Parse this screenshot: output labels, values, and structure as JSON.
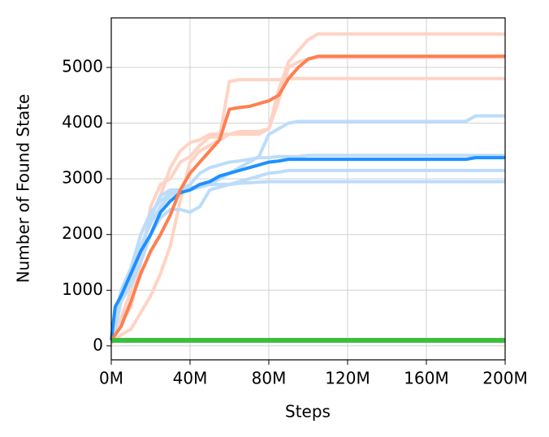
{
  "chart_data": {
    "type": "line",
    "xlabel": "Steps",
    "ylabel": "Number of Found State",
    "x": [
      0,
      2,
      5,
      10,
      15,
      20,
      25,
      30,
      35,
      40,
      45,
      50,
      55,
      60,
      65,
      70,
      75,
      80,
      85,
      90,
      95,
      100,
      105,
      180,
      185,
      200
    ],
    "series": [
      {
        "color": "#ffd3c4",
        "values": [
          100,
          250,
          500,
          1000,
          1700,
          2300,
          2700,
          3200,
          3500,
          3650,
          3700,
          3800,
          3800,
          3800,
          3800,
          3800,
          3800,
          3900,
          4600,
          5100,
          5300,
          5500,
          5600,
          5600,
          5600,
          5600
        ]
      },
      {
        "color": "#ffd3c4",
        "values": [
          100,
          200,
          400,
          700,
          1500,
          2500,
          2900,
          3000,
          3300,
          3400,
          3600,
          3750,
          3750,
          4750,
          4780,
          4780,
          4780,
          4780,
          4780,
          4800,
          4800,
          4800,
          4800,
          4800,
          4800,
          4800
        ]
      },
      {
        "color": "#ffd3c4",
        "values": [
          50,
          100,
          200,
          300,
          600,
          900,
          1300,
          1800,
          2600,
          3300,
          3500,
          3600,
          3700,
          3800,
          3850,
          3850,
          3850,
          3900,
          4400,
          5000,
          5100,
          5150,
          5180,
          5180,
          5180,
          5180
        ]
      },
      {
        "color": "#bcdcfa",
        "values": [
          100,
          600,
          900,
          1200,
          1700,
          2300,
          2700,
          2800,
          2800,
          2800,
          2850,
          2900,
          3000,
          3100,
          3200,
          3300,
          3400,
          3800,
          3900,
          4000,
          4030,
          4030,
          4030,
          4030,
          4130,
          4130
        ]
      },
      {
        "color": "#bcdcfa",
        "values": [
          100,
          500,
          1000,
          1400,
          2000,
          2400,
          2600,
          2750,
          2800,
          2900,
          3100,
          3200,
          3250,
          3300,
          3320,
          3350,
          3380,
          3380,
          3400,
          3400,
          3400,
          3420,
          3420,
          3420,
          3420,
          3420
        ]
      },
      {
        "color": "#bcdcfa",
        "values": [
          100,
          400,
          900,
          1300,
          1800,
          2200,
          2500,
          2700,
          2800,
          2850,
          2850,
          2900,
          2900,
          2900,
          2950,
          3000,
          3050,
          3100,
          3120,
          3150,
          3150,
          3150,
          3150,
          3150,
          3150,
          3150
        ]
      },
      {
        "color": "#bcdcfa",
        "values": [
          100,
          300,
          800,
          1100,
          1500,
          2000,
          2300,
          2450,
          2450,
          2400,
          2500,
          2800,
          2850,
          2900,
          2920,
          2930,
          2940,
          2950,
          2950,
          2950,
          2950,
          2950,
          2950,
          2950,
          2950,
          2950
        ]
      },
      {
        "color": "#1e90ff",
        "values": [
          100,
          700,
          900,
          1300,
          1700,
          2000,
          2400,
          2600,
          2750,
          2800,
          2900,
          2950,
          3050,
          3100,
          3150,
          3200,
          3250,
          3300,
          3320,
          3350,
          3350,
          3350,
          3350,
          3350,
          3380,
          3380
        ]
      },
      {
        "color": "#ff7f50",
        "values": [
          100,
          200,
          350,
          800,
          1300,
          1700,
          2000,
          2350,
          2800,
          3100,
          3300,
          3500,
          3700,
          4250,
          4280,
          4300,
          4350,
          4400,
          4500,
          4800,
          5000,
          5150,
          5200,
          5200,
          5200,
          5200
        ]
      },
      {
        "color": "#3cbf3c",
        "values": [
          100,
          100,
          100,
          100,
          100,
          100,
          100,
          100,
          100,
          100,
          100,
          100,
          100,
          100,
          100,
          100,
          100,
          100,
          100,
          100,
          100,
          100,
          100,
          100,
          100,
          100
        ]
      }
    ],
    "xlim": [
      0,
      200
    ],
    "xticks": [
      {
        "value": 0,
        "label": "0M"
      },
      {
        "value": 40,
        "label": "40M"
      },
      {
        "value": 80,
        "label": "80M"
      },
      {
        "value": 120,
        "label": "120M"
      },
      {
        "value": 160,
        "label": "160M"
      },
      {
        "value": 200,
        "label": "200M"
      }
    ],
    "ylim": [
      -250,
      5890
    ],
    "yticks": [
      0,
      1000,
      2000,
      3000,
      4000,
      5000
    ],
    "grid": true
  }
}
